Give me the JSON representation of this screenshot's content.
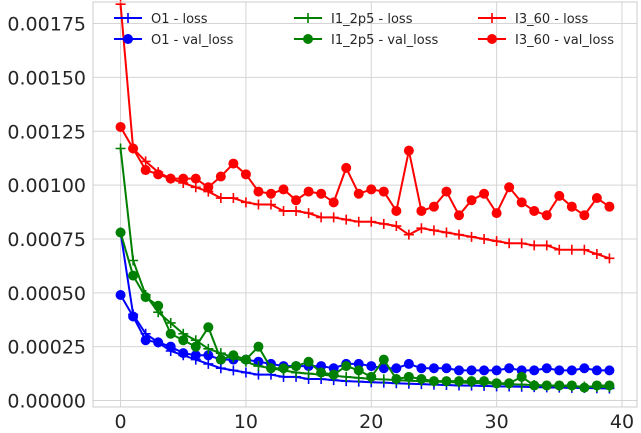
{
  "chart_data": {
    "type": "line",
    "x": [
      0,
      1,
      2,
      3,
      4,
      5,
      6,
      7,
      8,
      9,
      10,
      11,
      12,
      13,
      14,
      15,
      16,
      17,
      18,
      19,
      20,
      21,
      22,
      23,
      24,
      25,
      26,
      27,
      28,
      29,
      30,
      31,
      32,
      33,
      34,
      35,
      36,
      37,
      38,
      39
    ],
    "xlim": [
      -2.2,
      41.2
    ],
    "ylim": [
      -3e-05,
      0.00185
    ],
    "xticks": [
      0,
      10,
      20,
      30,
      40
    ],
    "xtick_labels": [
      "0",
      "10",
      "20",
      "30",
      "40"
    ],
    "yticks": [
      0.0,
      0.00025,
      0.0005,
      0.00075,
      0.001,
      0.00125,
      0.0015,
      0.00175
    ],
    "ytick_labels": [
      "0.00000",
      "0.00025",
      "0.00050",
      "0.00075",
      "0.00100",
      "0.00125",
      "0.00150",
      "0.00175"
    ],
    "grid": true,
    "legend_position": "top",
    "series": [
      {
        "name": "O1 - loss",
        "color": "#0000ff",
        "marker": "plus",
        "values": [
          0.00078,
          0.0004,
          0.00031,
          0.00027,
          0.00023,
          0.00021,
          0.00019,
          0.00017,
          0.00015,
          0.00014,
          0.00013,
          0.00012,
          0.00012,
          0.00011,
          0.00011,
          0.0001,
          0.0001,
          9.5e-05,
          9e-05,
          8.8e-05,
          8.5e-05,
          8.3e-05,
          8e-05,
          7.8e-05,
          7.6e-05,
          7.4e-05,
          7.2e-05,
          7e-05,
          6.9e-05,
          6.8e-05,
          6.6e-05,
          6.5e-05,
          6.4e-05,
          6.2e-05,
          6.1e-05,
          6e-05,
          5.9e-05,
          5.8e-05,
          5.7e-05,
          5.6e-05
        ]
      },
      {
        "name": "O1 - val_loss",
        "color": "#0000ff",
        "marker": "circle",
        "values": [
          0.00049,
          0.00039,
          0.00028,
          0.00027,
          0.00025,
          0.00022,
          0.00021,
          0.00021,
          0.00019,
          0.00019,
          0.00019,
          0.00018,
          0.00017,
          0.00016,
          0.00016,
          0.00016,
          0.00016,
          0.00015,
          0.00017,
          0.00017,
          0.00016,
          0.00015,
          0.00015,
          0.00017,
          0.00015,
          0.00015,
          0.00015,
          0.00014,
          0.00014,
          0.00014,
          0.00014,
          0.00015,
          0.00014,
          0.00014,
          0.00015,
          0.00014,
          0.00014,
          0.00015,
          0.00014,
          0.00014
        ]
      },
      {
        "name": "I1_2p5 - loss",
        "color": "#008000",
        "marker": "plus",
        "values": [
          0.00117,
          0.00065,
          0.00049,
          0.00041,
          0.00036,
          0.00031,
          0.00028,
          0.00024,
          0.00022,
          0.0002,
          0.00018,
          0.00016,
          0.00015,
          0.00014,
          0.00013,
          0.000125,
          0.00012,
          0.000115,
          0.00011,
          0.000105,
          0.0001,
          9.8e-05,
          9.5e-05,
          9.2e-05,
          9e-05,
          8.8e-05,
          8.6e-05,
          8.4e-05,
          8.2e-05,
          8e-05,
          7.8e-05,
          7.6e-05,
          7.4e-05,
          7.2e-05,
          7e-05,
          6.8e-05,
          6.6e-05,
          6.5e-05,
          6.3e-05,
          6.2e-05
        ]
      },
      {
        "name": "I1_2p5 - val_loss",
        "color": "#008000",
        "marker": "circle",
        "values": [
          0.00078,
          0.00058,
          0.00048,
          0.00044,
          0.00031,
          0.00028,
          0.00025,
          0.00034,
          0.00019,
          0.00021,
          0.00019,
          0.00025,
          0.00015,
          0.00015,
          0.00016,
          0.00018,
          0.00013,
          0.00012,
          0.00016,
          0.00014,
          0.00011,
          0.00019,
          0.0001,
          0.00011,
          0.0001,
          9e-05,
          9e-05,
          9e-05,
          9e-05,
          9e-05,
          8e-05,
          8e-05,
          0.00011,
          7e-05,
          7e-05,
          7e-05,
          7e-05,
          6e-05,
          7e-05,
          7e-05
        ]
      },
      {
        "name": "I3_60 - loss",
        "color": "#ff0000",
        "marker": "plus",
        "values": [
          0.00184,
          0.00117,
          0.00111,
          0.00106,
          0.00103,
          0.00101,
          0.00099,
          0.00097,
          0.00094,
          0.00094,
          0.00092,
          0.00091,
          0.00091,
          0.00088,
          0.00088,
          0.00087,
          0.00085,
          0.00085,
          0.00084,
          0.00083,
          0.00083,
          0.00082,
          0.00081,
          0.00077,
          0.0008,
          0.00079,
          0.00078,
          0.00077,
          0.00076,
          0.00075,
          0.00074,
          0.00073,
          0.00073,
          0.00072,
          0.00072,
          0.0007,
          0.0007,
          0.0007,
          0.00068,
          0.00066
        ]
      },
      {
        "name": "I3_60 - val_loss",
        "color": "#ff0000",
        "marker": "circle",
        "values": [
          0.00127,
          0.00117,
          0.00107,
          0.00105,
          0.00103,
          0.00103,
          0.00103,
          0.00099,
          0.00104,
          0.0011,
          0.00105,
          0.00097,
          0.00096,
          0.00098,
          0.00093,
          0.00097,
          0.00096,
          0.00092,
          0.00108,
          0.00096,
          0.00098,
          0.00097,
          0.00088,
          0.00116,
          0.00088,
          0.0009,
          0.00097,
          0.00086,
          0.00093,
          0.00096,
          0.00087,
          0.00099,
          0.00092,
          0.00088,
          0.00086,
          0.00095,
          0.0009,
          0.00086,
          0.00094,
          0.0009
        ]
      }
    ]
  }
}
